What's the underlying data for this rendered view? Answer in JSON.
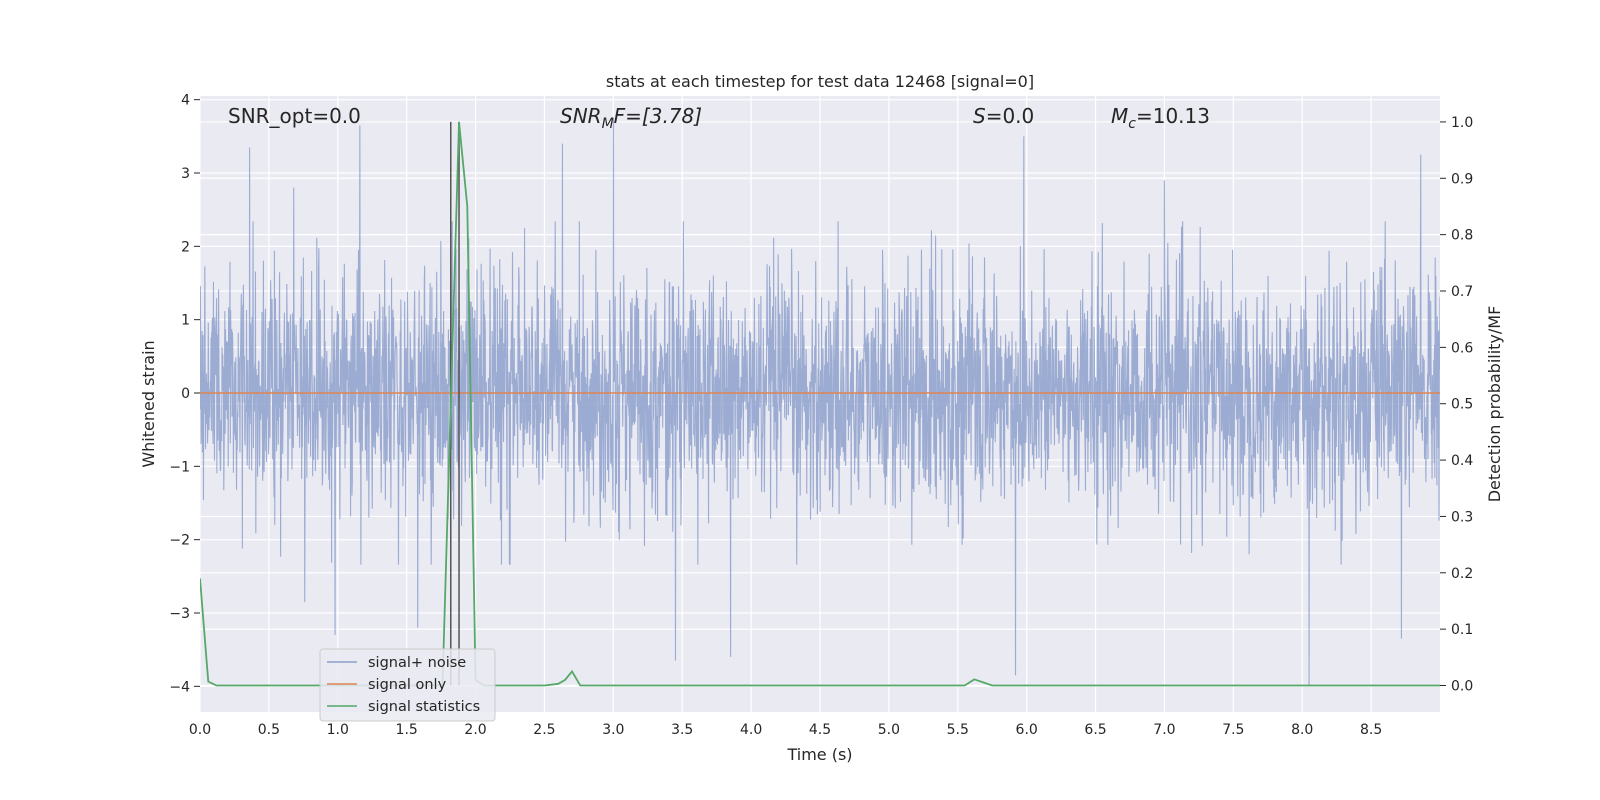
{
  "chart_data": {
    "type": "line",
    "title": "stats at each timestep for test data 12468 [signal=0]",
    "xlabel": "Time (s)",
    "ylabel": "Whitened strain",
    "y2label": "Detection probability/MF",
    "xlim": [
      0,
      9.0
    ],
    "ylim": [
      -4.35,
      4.05
    ],
    "y2lim": [
      -0.047,
      1.046
    ],
    "xticks": [
      "0.0",
      "0.5",
      "1.0",
      "1.5",
      "2.0",
      "2.5",
      "3.0",
      "3.5",
      "4.0",
      "4.5",
      "5.0",
      "5.5",
      "6.0",
      "6.5",
      "7.0",
      "7.5",
      "8.0",
      "8.5"
    ],
    "yticks": [
      "4",
      "3",
      "2",
      "1",
      "0",
      "−1",
      "−2",
      "−3",
      "−4"
    ],
    "y2ticks": [
      "1.0",
      "0.9",
      "0.8",
      "0.7",
      "0.6",
      "0.5",
      "0.4",
      "0.3",
      "0.2",
      "0.1",
      "0.0"
    ],
    "grid": true,
    "legend_position": "lower-left",
    "annotations": {
      "snr_opt": "SNR_opt=0.0",
      "snr_mf_base": "SNR",
      "snr_mf_sub": "M",
      "snr_mf_rest": "F=[3.78]",
      "s_italic": "S",
      "s_rest": "=0.0",
      "mc_base": "M",
      "mc_sub": "c",
      "mc_rest": "=10.13"
    },
    "vertical_lines_x": [
      1.82,
      1.88
    ],
    "series": [
      {
        "name": "signal+ noise",
        "color": "#8da0cb",
        "axis": "left",
        "description_values": "whitened noise, approx Gaussian",
        "peaks": [
          [
            0.36,
            3.35
          ],
          [
            0.68,
            2.8
          ],
          [
            1.16,
            3.65
          ],
          [
            2.63,
            3.4
          ],
          [
            3.0,
            3.75
          ],
          [
            5.98,
            3.5
          ],
          [
            7.0,
            2.9
          ],
          [
            8.86,
            3.25
          ],
          [
            0.76,
            -2.85
          ],
          [
            0.98,
            -3.3
          ],
          [
            1.58,
            -3.2
          ],
          [
            3.45,
            -3.65
          ],
          [
            3.85,
            -3.6
          ],
          [
            5.92,
            -3.85
          ],
          [
            8.05,
            -4.0
          ],
          [
            8.72,
            -3.35
          ]
        ]
      },
      {
        "name": "signal only",
        "color": "#dd8452",
        "axis": "left",
        "x": [
          0.0,
          9.0
        ],
        "values": [
          0.0,
          0.0
        ]
      },
      {
        "name": "signal statistics",
        "color": "#55a868",
        "axis": "right",
        "x": [
          0.0,
          0.06,
          0.12,
          0.6,
          1.2,
          1.76,
          1.82,
          1.88,
          1.94,
          2.0,
          2.06,
          2.5,
          2.6,
          2.65,
          2.7,
          2.76,
          3.0,
          4.0,
          5.0,
          5.55,
          5.62,
          5.75,
          6.0,
          7.0,
          8.0,
          9.0
        ],
        "values": [
          0.19,
          0.007,
          0.0,
          0.0,
          0.0,
          0.0,
          0.5,
          1.0,
          0.85,
          0.01,
          0.0,
          0.0,
          0.003,
          0.01,
          0.025,
          0.0,
          0.0,
          0.0,
          0.0,
          0.0,
          0.011,
          0.0,
          0.0,
          0.0,
          0.0,
          0.0
        ]
      }
    ]
  }
}
